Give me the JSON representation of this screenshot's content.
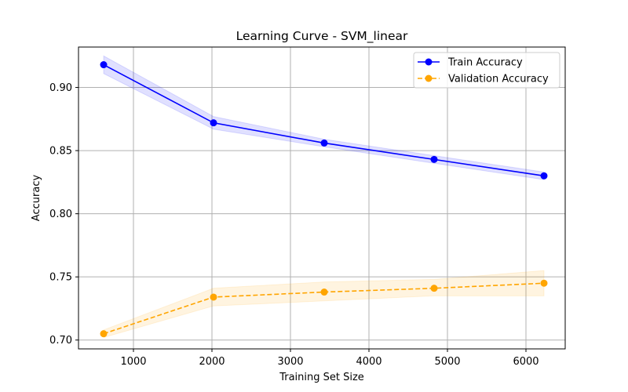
{
  "chart_data": {
    "type": "line",
    "title": "Learning Curve - SVM_linear",
    "xlabel": "Training Set Size",
    "ylabel": "Accuracy",
    "xlim": [
      300,
      6500
    ],
    "ylim": [
      0.693,
      0.932
    ],
    "xticks": [
      1000,
      2000,
      3000,
      4000,
      5000,
      6000
    ],
    "yticks": [
      0.7,
      0.75,
      0.8,
      0.85,
      0.9
    ],
    "grid": true,
    "legend_position": "top-right",
    "x": [
      620,
      2020,
      3430,
      4830,
      6230
    ],
    "series": [
      {
        "name": "Train Accuracy",
        "values": [
          0.918,
          0.872,
          0.856,
          0.843,
          0.83
        ],
        "lower": [
          0.911,
          0.867,
          0.853,
          0.84,
          0.827
        ],
        "upper": [
          0.925,
          0.877,
          0.859,
          0.846,
          0.833
        ],
        "color": "#0000ff",
        "linestyle": "solid",
        "marker": "circle"
      },
      {
        "name": "Validation Accuracy",
        "values": [
          0.705,
          0.734,
          0.738,
          0.741,
          0.745
        ],
        "lower": [
          0.702,
          0.727,
          0.731,
          0.735,
          0.735
        ],
        "upper": [
          0.708,
          0.741,
          0.746,
          0.748,
          0.755
        ],
        "color": "#ffa500",
        "linestyle": "dashed",
        "marker": "circle"
      }
    ]
  }
}
